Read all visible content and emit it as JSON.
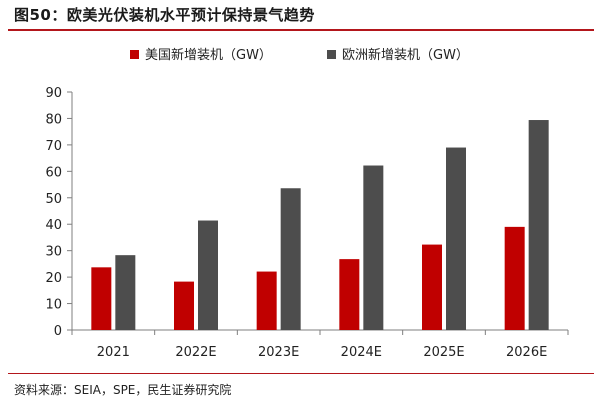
{
  "title": "图50：欧美光伏装机水平预计保持景气趋势",
  "source": "资料来源：SEIA，SPE，民生证券研究院",
  "chart_data": {
    "type": "bar",
    "categories": [
      "2021",
      "2022E",
      "2023E",
      "2024E",
      "2025E",
      "2026E"
    ],
    "series": [
      {
        "name": "美国新增装机（GW）",
        "color": "#c00000",
        "values": [
          23.7,
          18.3,
          22.1,
          26.8,
          32.3,
          39.0
        ]
      },
      {
        "name": "欧洲新增装机（GW）",
        "color": "#4d4d4d",
        "values": [
          28.3,
          41.4,
          53.6,
          62.2,
          69.0,
          79.4
        ]
      }
    ],
    "yticks": [
      0,
      10,
      20,
      30,
      40,
      50,
      60,
      70,
      80,
      90
    ],
    "ylim": [
      0,
      90
    ],
    "grid": false,
    "legend_position": "top"
  }
}
